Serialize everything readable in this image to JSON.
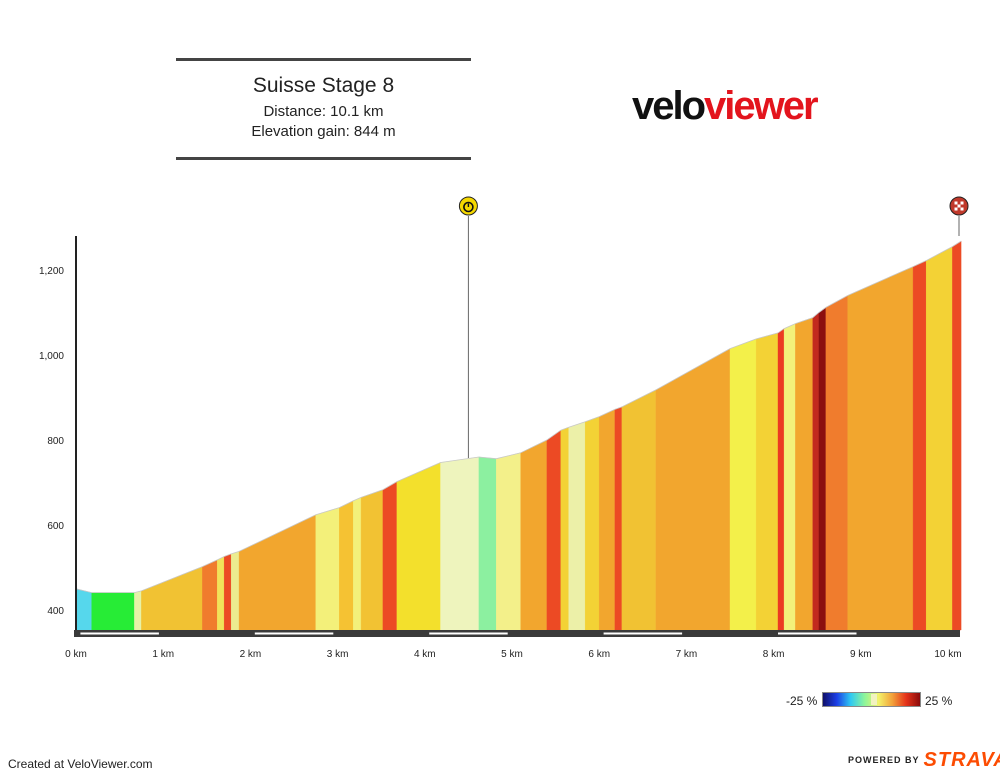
{
  "header": {
    "title": "Suisse Stage 8",
    "distance": "Distance: 10.1 km",
    "elevation_gain": "Elevation gain: 844 m"
  },
  "logo": {
    "part1": "velo",
    "part2": "viewer"
  },
  "footer": {
    "created": "Created at VeloViewer.com",
    "powered_by": "POWERED BY",
    "strava": "STRAVA"
  },
  "legend": {
    "min": "-25 %",
    "max": "25 %"
  },
  "colors": {
    "brand_red": "#e3141d",
    "strava_orange": "#fc4c02"
  },
  "markers": [
    {
      "name": "stopwatch-icon",
      "km": 4.5
    },
    {
      "name": "finish-flag-icon",
      "km": 10.1
    }
  ],
  "chart_data": {
    "type": "area",
    "title": "",
    "xlabel": "",
    "ylabel": "",
    "xlim": [
      0,
      10.1
    ],
    "ylim": [
      355,
      1280
    ],
    "x_ticks": [
      0,
      1,
      2,
      3,
      4,
      5,
      6,
      7,
      8,
      9,
      10
    ],
    "x_tick_labels": [
      "0 km",
      "1 km",
      "2 km",
      "3 km",
      "4 km",
      "5 km",
      "6 km",
      "7 km",
      "8 km",
      "9 km",
      "10 km"
    ],
    "y_ticks": [
      400,
      600,
      800,
      1000,
      1200
    ],
    "y_tick_labels": [
      "400",
      "600",
      "800",
      "1,000",
      "1,200"
    ],
    "grid": false,
    "segments": [
      [
        0.0,
        450,
        0.18,
        441,
        "#56d7ec"
      ],
      [
        0.18,
        441,
        0.67,
        441,
        "#27ec36"
      ],
      [
        0.67,
        441,
        0.75,
        445,
        "#e7f2a8"
      ],
      [
        0.75,
        445,
        1.45,
        502,
        "#f1c233"
      ],
      [
        1.45,
        502,
        1.62,
        518,
        "#f07c2d"
      ],
      [
        1.62,
        518,
        1.7,
        526,
        "#f1e25a"
      ],
      [
        1.7,
        526,
        1.78,
        532,
        "#ec4a24"
      ],
      [
        1.78,
        532,
        1.87,
        538,
        "#ecec90"
      ],
      [
        1.87,
        538,
        2.75,
        624,
        "#f2a62e"
      ],
      [
        2.75,
        624,
        3.02,
        641,
        "#f3f07a"
      ],
      [
        3.02,
        641,
        3.18,
        657,
        "#f5c233"
      ],
      [
        3.18,
        657,
        3.27,
        665,
        "#f3f07a"
      ],
      [
        3.27,
        665,
        3.52,
        683,
        "#f2c233"
      ],
      [
        3.52,
        683,
        3.68,
        702,
        "#ec4a24"
      ],
      [
        3.68,
        702,
        4.18,
        747,
        "#f3e02c"
      ],
      [
        4.18,
        747,
        4.62,
        760,
        "#eef4bd"
      ],
      [
        4.62,
        760,
        4.82,
        756,
        "#8cf0a0"
      ],
      [
        4.82,
        756,
        5.1,
        770,
        "#f3f08a"
      ],
      [
        5.1,
        770,
        5.4,
        800,
        "#f2a62e"
      ],
      [
        5.4,
        800,
        5.56,
        823,
        "#ec4a24"
      ],
      [
        5.56,
        823,
        5.65,
        830,
        "#f3d235"
      ],
      [
        5.65,
        830,
        5.84,
        843,
        "#ecf0a8"
      ],
      [
        5.84,
        843,
        6.0,
        855,
        "#f3d235"
      ],
      [
        6.0,
        855,
        6.18,
        872,
        "#f2a62e"
      ],
      [
        6.18,
        872,
        6.26,
        878,
        "#ec4a24"
      ],
      [
        6.26,
        878,
        6.65,
        918,
        "#f1c233"
      ],
      [
        6.65,
        918,
        7.5,
        1015,
        "#f2a62e"
      ],
      [
        7.5,
        1015,
        7.8,
        1038,
        "#f3f04a"
      ],
      [
        7.8,
        1038,
        8.05,
        1052,
        "#f3d235"
      ],
      [
        8.05,
        1052,
        8.12,
        1062,
        "#ec3a22"
      ],
      [
        8.12,
        1062,
        8.25,
        1074,
        "#f3f07a"
      ],
      [
        8.25,
        1074,
        8.45,
        1088,
        "#f2a62e"
      ],
      [
        8.45,
        1088,
        8.52,
        1100,
        "#c22a1e"
      ],
      [
        8.52,
        1100,
        8.6,
        1112,
        "#8b0f0f"
      ],
      [
        8.6,
        1112,
        8.85,
        1140,
        "#f07c2d"
      ],
      [
        8.85,
        1140,
        9.6,
        1208,
        "#f2a62e"
      ],
      [
        9.6,
        1208,
        9.75,
        1222,
        "#ec4a24"
      ],
      [
        9.75,
        1222,
        10.05,
        1255,
        "#f3d235"
      ],
      [
        10.05,
        1255,
        10.15,
        1268,
        "#ec4a24"
      ]
    ]
  }
}
